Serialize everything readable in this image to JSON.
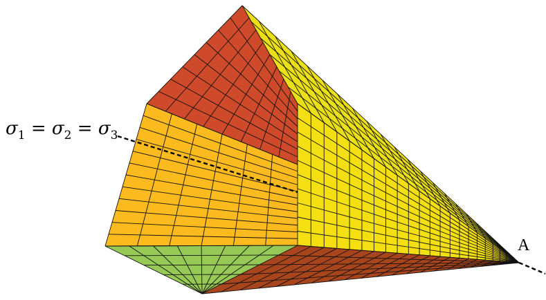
{
  "figure": {
    "axis_label": "σ1 = σ2 = σ3",
    "axis_label_symbol": "σ",
    "axis_label_subscripts": [
      "1",
      "2",
      "3"
    ],
    "apex_label": "A"
  },
  "colors": {
    "face_top_red": "#cf4a2a",
    "face_upper_yellow": "#e3dc19",
    "face_front_yellow": "#f4df12",
    "face_left_orange": "#fbbb1f",
    "face_bottom_green": "#96c955",
    "face_bottom_brown": "#a8451d",
    "mesh_lines": "#111111",
    "axis_line": "#000000"
  }
}
